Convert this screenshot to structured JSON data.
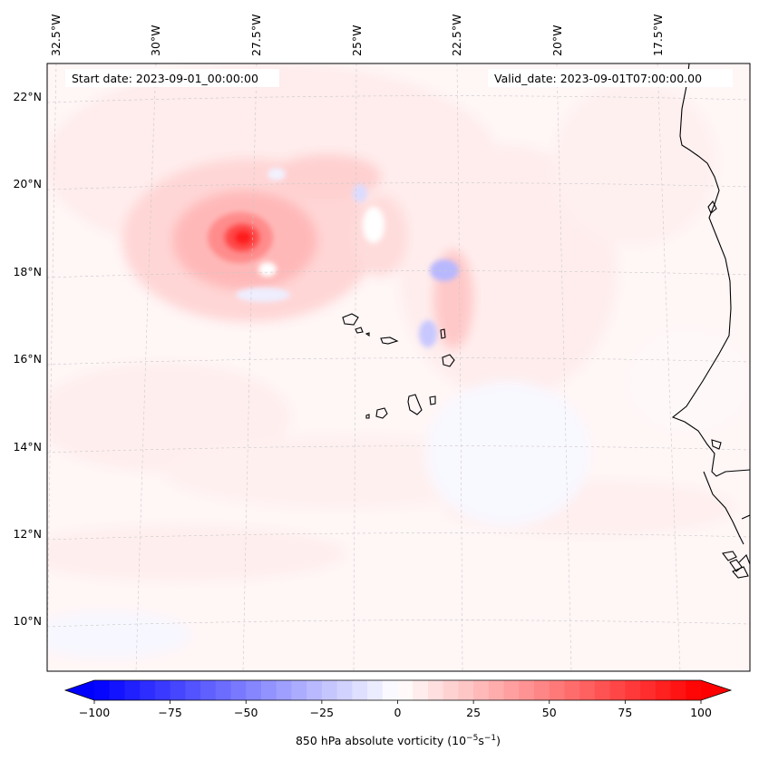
{
  "map": {
    "start_date": "Start date: 2023-09-01_00:00:00",
    "valid_date": "Valid_date: 2023-09-01T07:00:00.00",
    "lon_labels": [
      "32.5°W",
      "30°W",
      "27.5°W",
      "25°W",
      "22.5°W",
      "20°W",
      "17.5°W"
    ],
    "lat_labels": [
      "22°N",
      "20°N",
      "18°N",
      "16°N",
      "14°N",
      "12°N",
      "10°N"
    ]
  },
  "colorbar": {
    "label": "850 hPa absolute vorticity (10",
    "label_exp1": "−5",
    "label_mid": "s",
    "label_exp2": "−1",
    "label_end": ")",
    "tick_labels": [
      "−100",
      "−75",
      "−50",
      "−25",
      "0",
      "25",
      "50",
      "75",
      "100"
    ],
    "colors": {
      "min": "#0000ff",
      "mid": "#ffffff",
      "max": "#ff0000"
    }
  },
  "chart_data": {
    "type": "heatmap",
    "title": "",
    "field": "850 hPa absolute vorticity",
    "units": "10^-5 s^-1",
    "colorbar_range": [
      -100,
      100
    ],
    "colorbar_ticks": [
      -100,
      -75,
      -50,
      -25,
      0,
      25,
      50,
      75,
      100
    ],
    "colormap": "bwr",
    "longitude_ticks": [
      -32.5,
      -30,
      -27.5,
      -25,
      -22.5,
      -20,
      -17.5
    ],
    "latitude_ticks": [
      22,
      20,
      18,
      16,
      14,
      12,
      10
    ],
    "grid": true,
    "features": [
      {
        "name": "vorticity maximum",
        "lon": -27.4,
        "lat": 18.8,
        "value": 85
      },
      {
        "name": "vorticity minimum",
        "lon": -23.0,
        "lat": 18.0,
        "value": -25
      },
      {
        "name": "vorticity minimum",
        "lon": -23.4,
        "lat": 16.6,
        "value": -20
      },
      {
        "name": "vorticity minimum",
        "lon": -25.0,
        "lat": 19.8,
        "value": -15
      }
    ]
  }
}
